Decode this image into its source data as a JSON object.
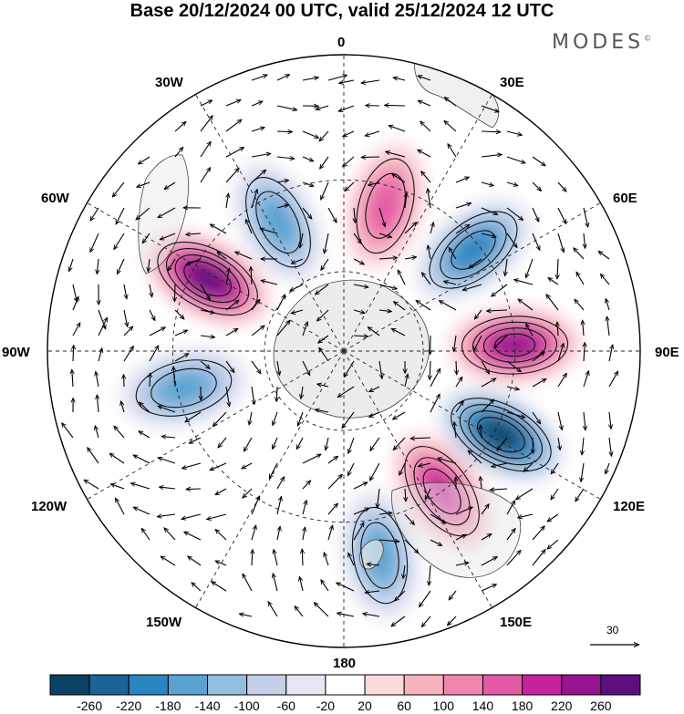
{
  "title": "Base 20/12/2024 00 UTC, valid 25/12/2024 12 UTC",
  "brand": "MODES",
  "brand_mark": "©",
  "longitude_labels": [
    "0",
    "30E",
    "60E",
    "90E",
    "120E",
    "150E",
    "180",
    "150W",
    "120W",
    "90W",
    "60W",
    "30W"
  ],
  "vector_scale": {
    "label": "30"
  },
  "colorbar": {
    "colors": [
      "#0b4263",
      "#1c6496",
      "#2b85c0",
      "#5aa2d1",
      "#92bee0",
      "#c3cfe8",
      "#e5e5f3",
      "#ffffff",
      "#fbd9dc",
      "#f6b3bd",
      "#f087b0",
      "#e45aa6",
      "#c7229c",
      "#97148f",
      "#5d0f7d"
    ],
    "tick_labels": [
      "-260",
      "-220",
      "-180",
      "-140",
      "-100",
      "-60",
      "-20",
      "20",
      "60",
      "100",
      "140",
      "180",
      "220",
      "260"
    ]
  },
  "field_features": [
    {
      "sign": "positive",
      "level": 260,
      "lon": -62,
      "colat": 55
    },
    {
      "sign": "negative",
      "level": -140,
      "lon": -27,
      "colat": 52
    },
    {
      "sign": "positive",
      "level": 140,
      "lon": 16,
      "colat": 54
    },
    {
      "sign": "negative",
      "level": -180,
      "lon": 52,
      "colat": 58
    },
    {
      "sign": "positive",
      "level": 220,
      "lon": 88,
      "colat": 60
    },
    {
      "sign": "negative",
      "level": -260,
      "lon": 118,
      "colat": 62
    },
    {
      "sign": "positive",
      "level": 180,
      "lon": 145,
      "colat": 60
    },
    {
      "sign": "negative",
      "level": -140,
      "lon": 170,
      "colat": 70
    },
    {
      "sign": "negative",
      "level": -140,
      "lon": -103,
      "colat": 58
    }
  ]
}
